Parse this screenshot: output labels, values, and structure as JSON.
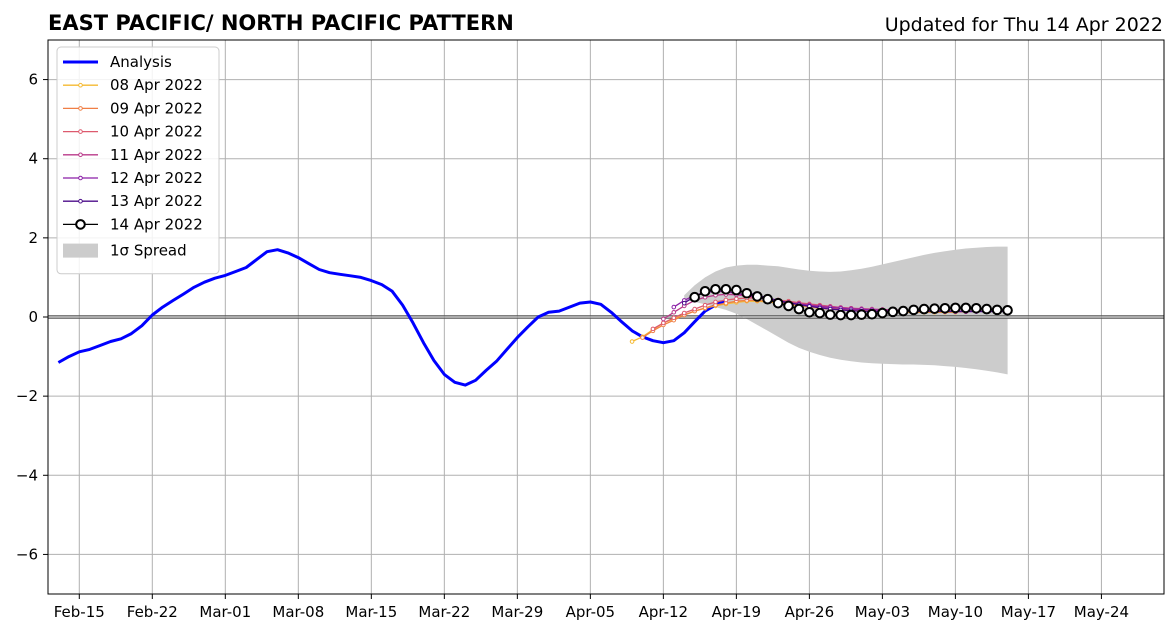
{
  "chart_data": {
    "type": "line",
    "title": "EAST PACIFIC/ NORTH PACIFIC PATTERN",
    "subtitle": "Updated for Thu 14 Apr 2022",
    "xlabel": "",
    "ylabel": "",
    "xlim": [
      "2022-02-12",
      "2022-05-30"
    ],
    "ylim": [
      -7,
      7
    ],
    "yticks": [
      -6,
      -4,
      -2,
      0,
      2,
      4,
      6
    ],
    "ytick_labels": [
      "−6",
      "−4",
      "−2",
      "0",
      "2",
      "4",
      "6"
    ],
    "xtick_dates": [
      "2022-02-15",
      "2022-02-22",
      "2022-03-01",
      "2022-03-08",
      "2022-03-15",
      "2022-03-22",
      "2022-03-29",
      "2022-04-05",
      "2022-04-12",
      "2022-04-19",
      "2022-04-26",
      "2022-05-03",
      "2022-05-10",
      "2022-05-17",
      "2022-05-24"
    ],
    "xtick_labels": [
      "Feb-15",
      "Feb-22",
      "Mar-01",
      "Mar-08",
      "Mar-15",
      "Mar-22",
      "Mar-29",
      "Apr-05",
      "Apr-12",
      "Apr-19",
      "Apr-26",
      "May-03",
      "May-10",
      "May-17",
      "May-24"
    ],
    "grid": true,
    "legend_position": "top-left",
    "colors": {
      "analysis": "#0000ff",
      "spread": "#cccccc",
      "zero_line": "#555555",
      "grid": "#b0b0b0"
    },
    "analysis": {
      "name": "Analysis",
      "start": "2022-02-13",
      "values": [
        -1.15,
        -1.0,
        -0.88,
        -0.82,
        -0.72,
        -0.62,
        -0.55,
        -0.42,
        -0.22,
        0.05,
        0.25,
        0.42,
        0.58,
        0.75,
        0.88,
        0.98,
        1.05,
        1.15,
        1.25,
        1.45,
        1.65,
        1.7,
        1.62,
        1.5,
        1.35,
        1.2,
        1.12,
        1.08,
        1.04,
        1.0,
        0.92,
        0.82,
        0.65,
        0.3,
        -0.15,
        -0.65,
        -1.1,
        -1.45,
        -1.65,
        -1.72,
        -1.6,
        -1.35,
        -1.12,
        -0.82,
        -0.52,
        -0.25,
        0.0,
        0.12,
        0.15,
        0.25,
        0.35,
        0.38,
        0.32,
        0.12,
        -0.12,
        -0.35,
        -0.5,
        -0.6,
        -0.65,
        -0.6,
        -0.4,
        -0.12,
        0.15,
        0.3,
        0.42
      ]
    },
    "spread": {
      "name": "1σ Spread",
      "start": "2022-04-14",
      "upper": [
        0.55,
        0.8,
        1.0,
        1.15,
        1.25,
        1.3,
        1.32,
        1.32,
        1.3,
        1.28,
        1.24,
        1.2,
        1.17,
        1.15,
        1.14,
        1.15,
        1.18,
        1.22,
        1.27,
        1.33,
        1.39,
        1.45,
        1.51,
        1.57,
        1.62,
        1.66,
        1.7,
        1.73,
        1.75,
        1.77,
        1.78,
        1.78
      ],
      "lower": [
        0.45,
        0.38,
        0.32,
        0.25,
        0.18,
        0.08,
        -0.05,
        -0.2,
        -0.35,
        -0.5,
        -0.65,
        -0.78,
        -0.88,
        -0.96,
        -1.03,
        -1.08,
        -1.12,
        -1.15,
        -1.17,
        -1.18,
        -1.19,
        -1.2,
        -1.2,
        -1.21,
        -1.22,
        -1.24,
        -1.26,
        -1.29,
        -1.32,
        -1.36,
        -1.4,
        -1.45
      ]
    },
    "series": [
      {
        "name": "08 Apr 2022",
        "color": "#f5b930",
        "start": "2022-04-09",
        "values": [
          -0.62,
          -0.5,
          -0.32,
          -0.15,
          -0.05,
          0.05,
          0.15,
          0.22,
          0.28,
          0.33,
          0.37,
          0.4,
          0.4,
          0.38,
          0.35,
          0.32,
          0.28,
          0.25,
          0.22,
          0.2,
          0.18,
          0.16,
          0.15,
          0.14,
          0.13,
          0.13,
          0.12,
          0.12,
          0.12,
          0.12,
          0.12,
          0.12
        ]
      },
      {
        "name": "09 Apr 2022",
        "color": "#f07f45",
        "start": "2022-04-10",
        "values": [
          -0.52,
          -0.35,
          -0.2,
          -0.08,
          0.05,
          0.15,
          0.23,
          0.3,
          0.35,
          0.4,
          0.42,
          0.42,
          0.4,
          0.37,
          0.33,
          0.3,
          0.27,
          0.24,
          0.22,
          0.2,
          0.18,
          0.17,
          0.16,
          0.15,
          0.14,
          0.14,
          0.13,
          0.13,
          0.13,
          0.13,
          0.13,
          0.13
        ]
      },
      {
        "name": "10 Apr 2022",
        "color": "#dd5a6e",
        "start": "2022-04-11",
        "values": [
          -0.3,
          -0.15,
          -0.02,
          0.1,
          0.2,
          0.3,
          0.38,
          0.43,
          0.46,
          0.48,
          0.48,
          0.46,
          0.43,
          0.4,
          0.36,
          0.33,
          0.3,
          0.27,
          0.24,
          0.22,
          0.2,
          0.19,
          0.18,
          0.17,
          0.16,
          0.15,
          0.15,
          0.15,
          0.14,
          0.14,
          0.14,
          0.14
        ]
      },
      {
        "name": "11 Apr 2022",
        "color": "#b93a8a",
        "start": "2022-04-12",
        "values": [
          -0.05,
          0.12,
          0.28,
          0.42,
          0.5,
          0.55,
          0.57,
          0.56,
          0.53,
          0.49,
          0.45,
          0.41,
          0.37,
          0.34,
          0.31,
          0.28,
          0.26,
          0.24,
          0.22,
          0.21,
          0.2,
          0.19,
          0.18,
          0.17,
          0.17,
          0.16,
          0.16,
          0.16,
          0.15,
          0.15,
          0.15,
          0.15
        ]
      },
      {
        "name": "12 Apr 2022",
        "color": "#8a1fa6",
        "start": "2022-04-13",
        "values": [
          0.25,
          0.42,
          0.55,
          0.62,
          0.65,
          0.64,
          0.6,
          0.55,
          0.5,
          0.45,
          0.4,
          0.36,
          0.32,
          0.29,
          0.26,
          0.24,
          0.22,
          0.2,
          0.19,
          0.18,
          0.17,
          0.16,
          0.16,
          0.15,
          0.15,
          0.15,
          0.14,
          0.14,
          0.14,
          0.14,
          0.14,
          0.14
        ]
      },
      {
        "name": "13 Apr 2022",
        "color": "#4b0c8a",
        "start": "2022-04-14",
        "values": [
          0.35,
          0.52,
          0.62,
          0.68,
          0.7,
          0.68,
          0.62,
          0.55,
          0.48,
          0.42,
          0.36,
          0.31,
          0.27,
          0.23,
          0.2,
          0.18,
          0.16,
          0.15,
          0.14,
          0.14,
          0.14,
          0.14,
          0.14,
          0.14,
          0.14,
          0.14,
          0.14,
          0.14,
          0.14,
          0.14,
          0.14,
          0.14
        ]
      },
      {
        "name": "14 Apr 2022",
        "color": "#000000",
        "start": "2022-04-15",
        "values": [
          0.5,
          0.65,
          0.7,
          0.7,
          0.68,
          0.6,
          0.52,
          0.45,
          0.35,
          0.28,
          0.2,
          0.12,
          0.1,
          0.06,
          0.05,
          0.05,
          0.06,
          0.07,
          0.1,
          0.13,
          0.15,
          0.18,
          0.2,
          0.21,
          0.22,
          0.23,
          0.23,
          0.22,
          0.2,
          0.18,
          0.17
        ]
      }
    ]
  }
}
